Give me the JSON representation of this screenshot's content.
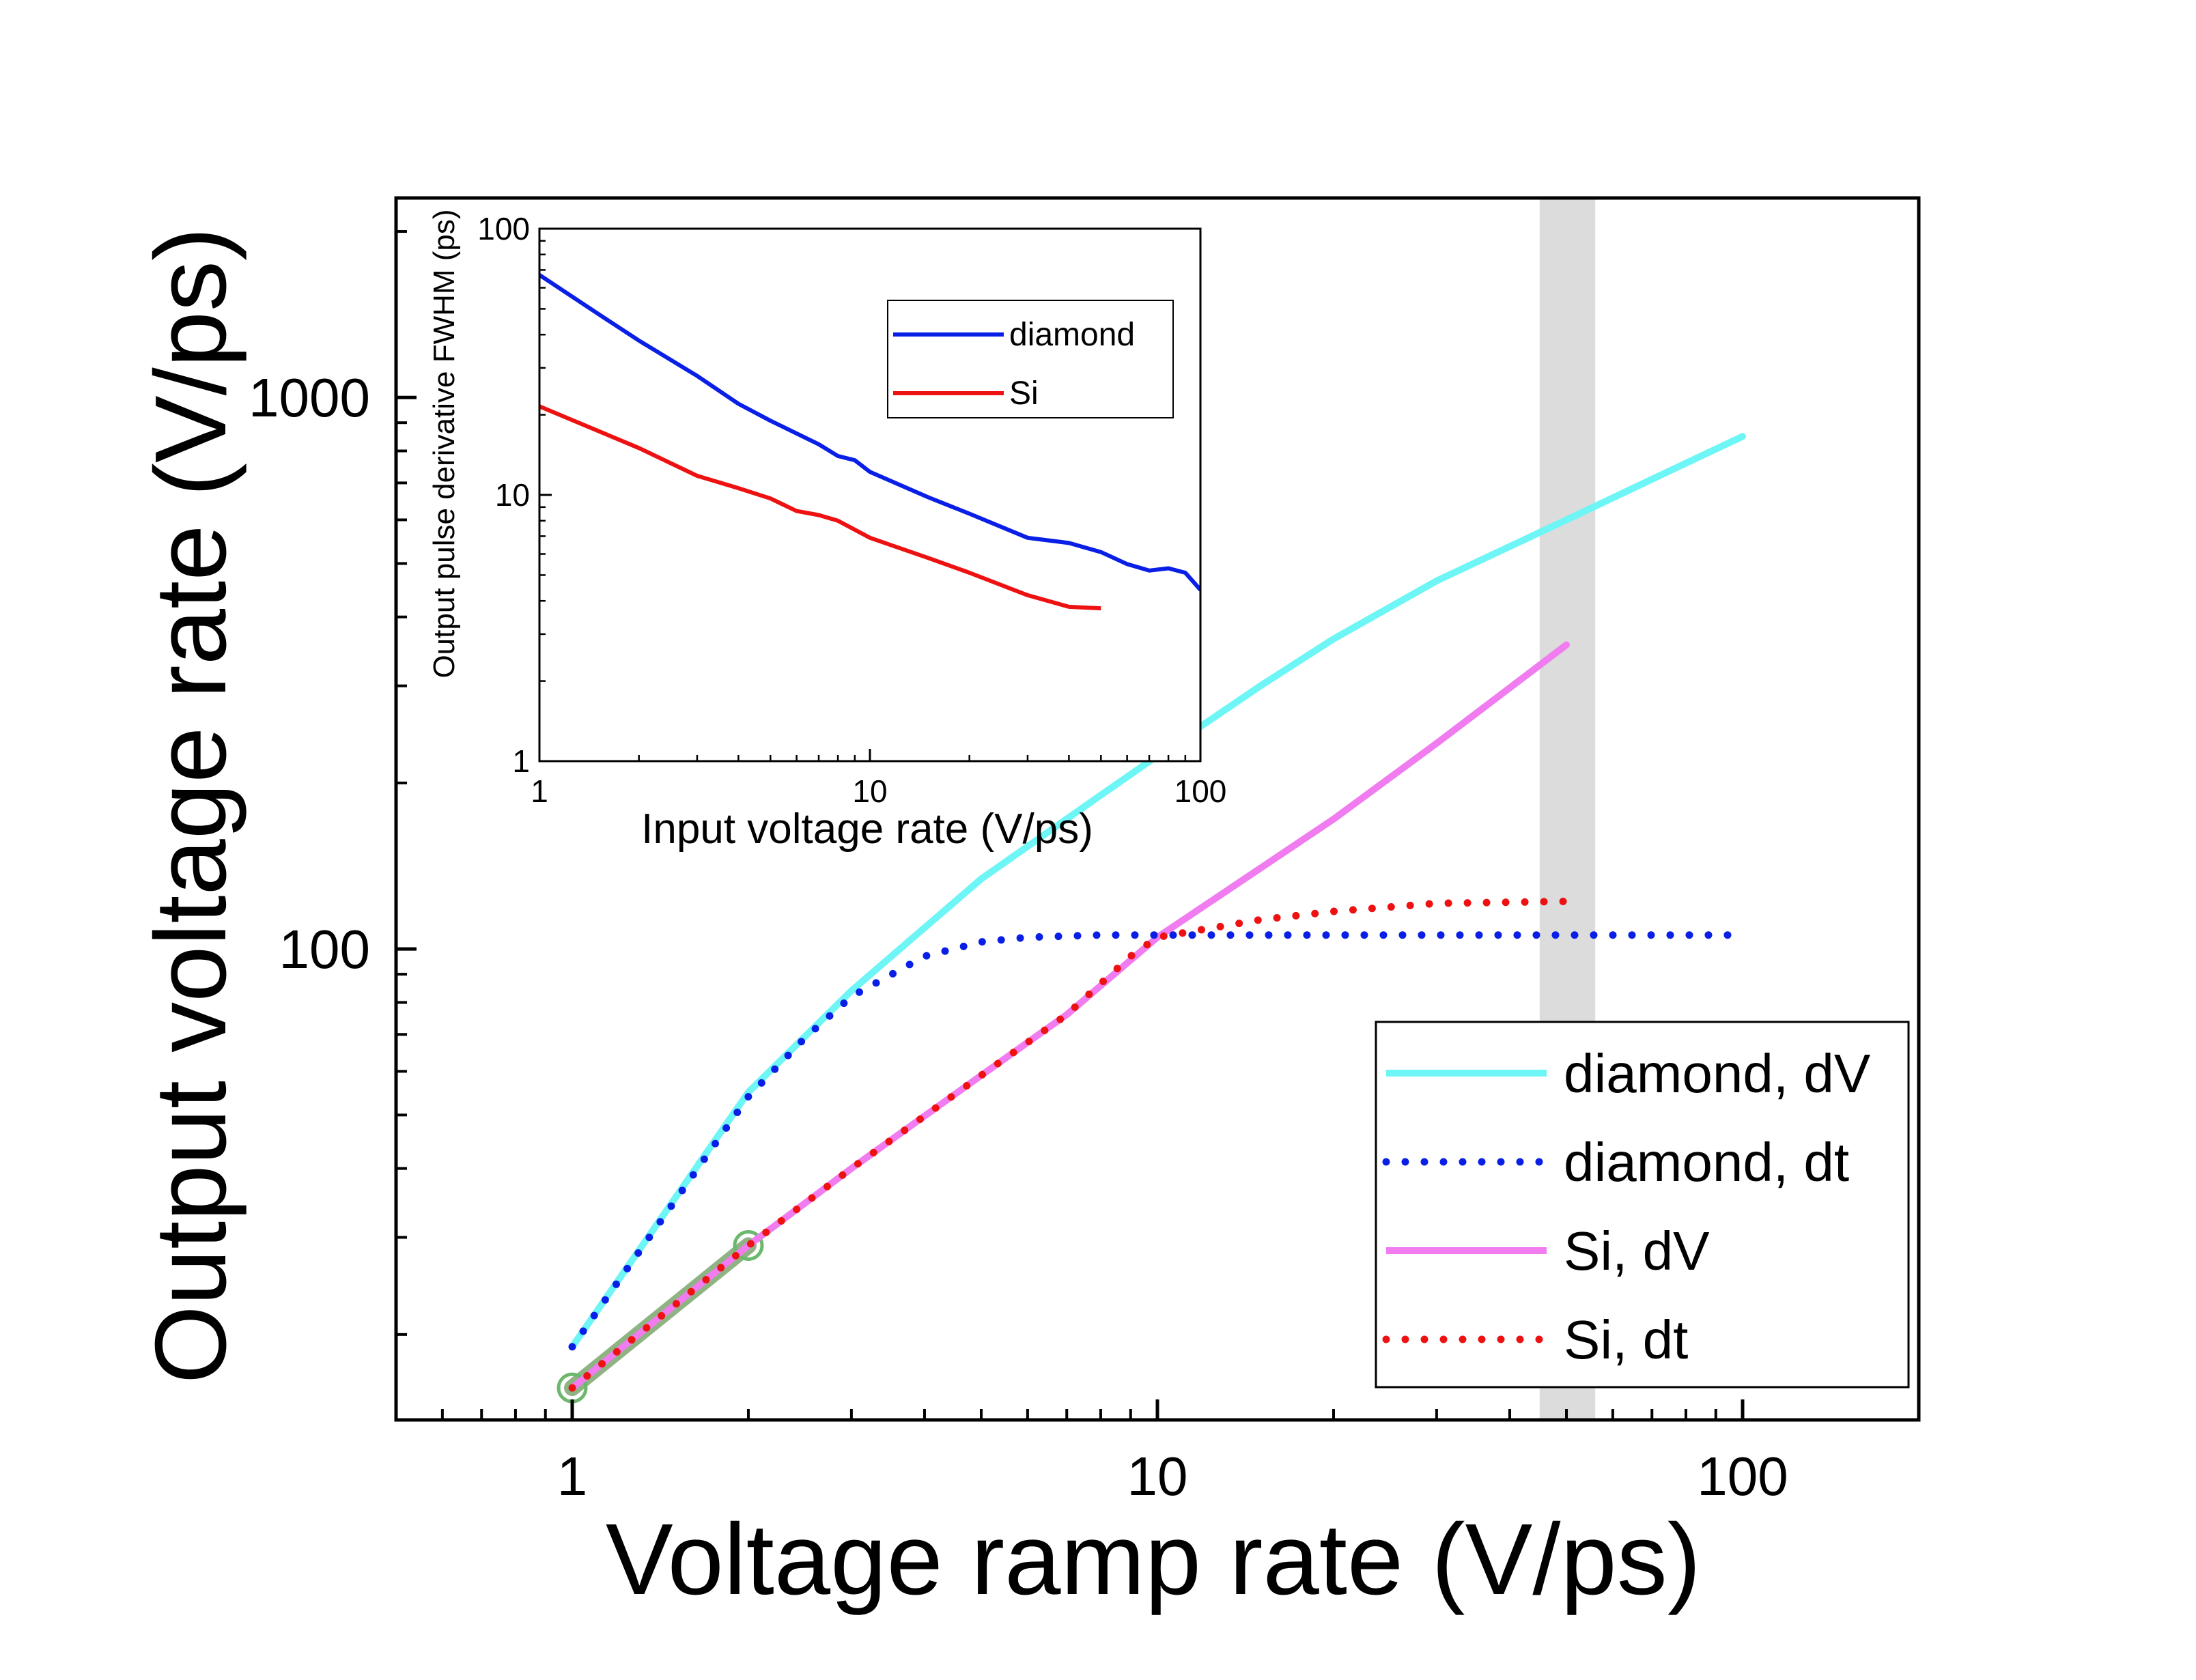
{
  "chart_data": [
    {
      "type": "line",
      "xscale": "log",
      "yscale": "log",
      "xlabel": "Voltage ramp rate (V/ps)",
      "ylabel": "Output voltage rate (V/ps)",
      "xlim": [
        0.5,
        200
      ],
      "ylim": [
        14,
        2300
      ],
      "xticks": [
        {
          "value": 1,
          "label": "1"
        },
        {
          "value": 10,
          "label": "10"
        },
        {
          "value": 100,
          "label": "100"
        }
      ],
      "yticks": [
        {
          "value": 100,
          "label": "100"
        },
        {
          "value": 1000,
          "label": "1000"
        }
      ],
      "shaded_x_band": [
        45,
        56
      ],
      "legend": [
        "diamond, dV",
        "diamond, dt",
        "Si, dV",
        "Si, dt"
      ],
      "series": [
        {
          "name": "diamond, dV",
          "style": "solid",
          "color": "#6EF5F5",
          "x": [
            1,
            2,
            3,
            5,
            8,
            10,
            15,
            20,
            30,
            50,
            80,
            100
          ],
          "y": [
            19,
            55,
            84,
            134,
            190,
            224,
            300,
            365,
            465,
            600,
            760,
            850
          ]
        },
        {
          "name": "diamond, dt",
          "style": "dotted",
          "color": "#0A1FE6",
          "x": [
            1,
            1.5,
            2,
            2.5,
            3,
            4,
            5,
            6,
            8,
            10,
            20,
            50,
            95
          ],
          "y": [
            19,
            35,
            54,
            69,
            82,
            97,
            103,
            105,
            106,
            106,
            106,
            106,
            106
          ]
        },
        {
          "name": "Si, dV",
          "style": "solid",
          "color": "#F07CF0",
          "x": [
            1,
            2,
            3,
            5,
            7,
            10,
            20,
            30,
            50
          ],
          "y": [
            16,
            29,
            40,
            59,
            76,
            105,
            172,
            236,
            356
          ]
        },
        {
          "name": "Si, dt",
          "style": "dotted",
          "color": "#EE1111",
          "x": [
            1,
            2,
            3,
            5,
            7,
            9,
            10,
            15,
            20,
            30,
            50
          ],
          "y": [
            16,
            29,
            40,
            59,
            76,
            97,
            105,
            113,
            117,
            121,
            122
          ]
        },
        {
          "name": "fit segment",
          "style": "highlight",
          "color": "#6A9A5A",
          "x": [
            1,
            2
          ],
          "y": [
            16,
            29
          ],
          "markers": "circle-end"
        }
      ]
    },
    {
      "type": "line",
      "xscale": "log",
      "yscale": "log",
      "xlabel": "Input voltage rate (V/ps)",
      "ylabel": "Output pulse derivative FWHM (ps)",
      "xlim": [
        1,
        100
      ],
      "ylim": [
        1,
        100
      ],
      "xticks": [
        {
          "value": 1,
          "label": "1"
        },
        {
          "value": 10,
          "label": "10"
        },
        {
          "value": 100,
          "label": "100"
        }
      ],
      "yticks": [
        {
          "value": 1,
          "label": "1"
        },
        {
          "value": 10,
          "label": "10"
        },
        {
          "value": 100,
          "label": "100"
        }
      ],
      "legend": [
        "diamond",
        "Si"
      ],
      "series": [
        {
          "name": "diamond",
          "color": "#0A1FE6",
          "x": [
            1,
            1.5,
            2,
            3,
            4,
            5,
            7,
            8,
            9,
            10,
            15,
            20,
            30,
            40,
            50,
            60,
            70,
            80,
            90,
            100
          ],
          "y": [
            67,
            48,
            38,
            28,
            22,
            19,
            15.5,
            14,
            13.5,
            12.2,
            9.8,
            8.5,
            6.9,
            6.6,
            6.1,
            5.5,
            5.2,
            5.3,
            5.1,
            4.4
          ]
        },
        {
          "name": "Si",
          "color": "#EE1111",
          "x": [
            1,
            2,
            3,
            4,
            5,
            6,
            7,
            8,
            10,
            15,
            20,
            30,
            40,
            50
          ],
          "y": [
            21.5,
            15,
            11.8,
            10.6,
            9.7,
            8.7,
            8.4,
            8,
            6.9,
            5.8,
            5.1,
            4.2,
            3.8,
            3.75
          ]
        }
      ]
    }
  ]
}
